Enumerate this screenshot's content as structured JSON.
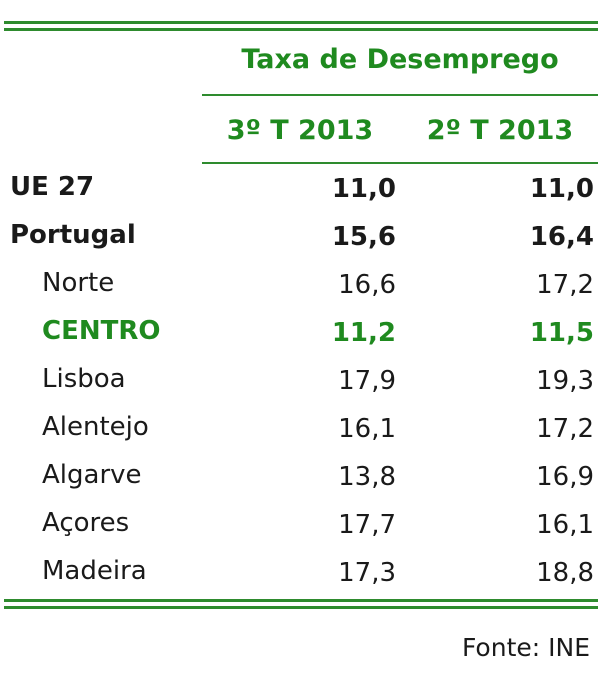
{
  "table": {
    "header_title": "Taxa de Desemprego",
    "columns": [
      "3º T 2013",
      "2º T 2013"
    ],
    "rows": [
      {
        "label": "UE 27",
        "v1": "11,0",
        "v2": "11,0"
      },
      {
        "label": "Portugal",
        "v1": "15,6",
        "v2": "16,4"
      },
      {
        "label": "Norte",
        "v1": "16,6",
        "v2": "17,2"
      },
      {
        "label": "CENTRO",
        "v1": "11,2",
        "v2": "11,5"
      },
      {
        "label": "Lisboa",
        "v1": "17,9",
        "v2": "19,3"
      },
      {
        "label": "Alentejo",
        "v1": "16,1",
        "v2": "17,2"
      },
      {
        "label": "Algarve",
        "v1": "13,8",
        "v2": "16,9"
      },
      {
        "label": "Açores",
        "v1": "17,7",
        "v2": "16,1"
      },
      {
        "label": "Madeira",
        "v1": "17,3",
        "v2": "18,8"
      }
    ]
  },
  "footer": {
    "source": "Fonte: INE"
  },
  "colors": {
    "accent": "#2e8b2e",
    "highlight_text": "#1f8a1f"
  }
}
